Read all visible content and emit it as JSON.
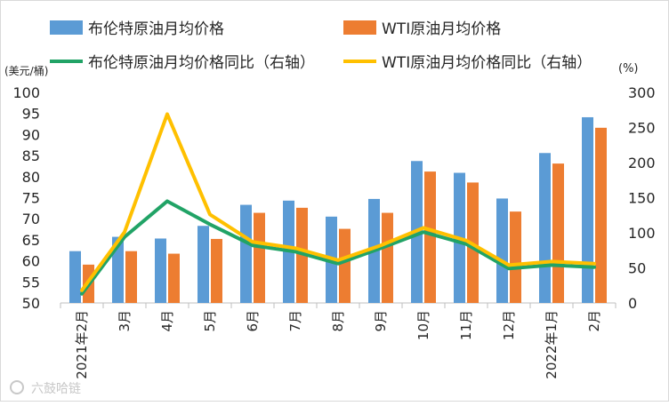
{
  "chart_data": {
    "type": "bar+line",
    "categories": [
      "2021年2月",
      "3月",
      "4月",
      "5月",
      "6月",
      "7月",
      "8月",
      "9月",
      "10月",
      "11月",
      "12月",
      "2022年1月",
      "2月"
    ],
    "left_axis": {
      "unit": "(美元/桶)",
      "ylim": [
        50,
        100
      ],
      "ticks": [
        50,
        55,
        60,
        65,
        70,
        75,
        80,
        85,
        90,
        95,
        100
      ]
    },
    "right_axis": {
      "unit": "(%)",
      "ylim": [
        0,
        300
      ],
      "ticks": [
        0,
        50,
        100,
        150,
        200,
        250,
        300
      ]
    },
    "series": [
      {
        "name": "布伦特原油月均价格",
        "type": "bar",
        "axis": "left",
        "color": "#5b9bd5",
        "values": [
          62.3,
          65.7,
          65.3,
          68.3,
          73.3,
          74.3,
          70.5,
          74.7,
          83.7,
          80.9,
          74.8,
          85.6,
          94.1
        ]
      },
      {
        "name": "WTI原油月均价格",
        "type": "bar",
        "axis": "left",
        "color": "#ed7d31",
        "values": [
          59.1,
          62.3,
          61.7,
          65.2,
          71.4,
          72.6,
          67.6,
          71.4,
          81.2,
          78.6,
          71.7,
          83.1,
          91.6
        ]
      },
      {
        "name": "布伦特原油月均价格同比（右轴）",
        "type": "line",
        "axis": "right",
        "color": "#21a366",
        "values": [
          13,
          94,
          145,
          112,
          82,
          73,
          56,
          78,
          101,
          84,
          49,
          54,
          51
        ]
      },
      {
        "name": "WTI原油月均价格同比（右轴）",
        "type": "line",
        "axis": "right",
        "color": "#ffc000",
        "values": [
          18,
          101,
          269,
          126,
          87,
          78,
          61,
          82,
          107,
          89,
          54,
          59,
          56
        ]
      }
    ]
  },
  "watermark": "六鼓哈链"
}
